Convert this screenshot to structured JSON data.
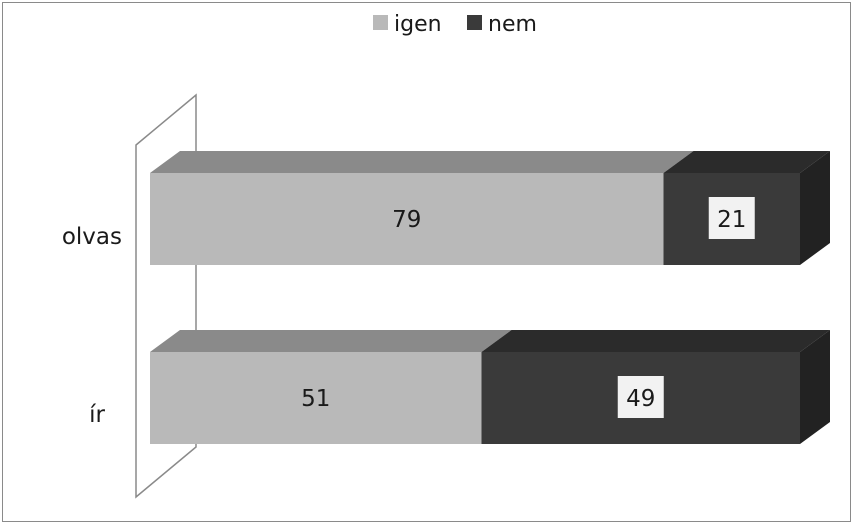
{
  "chart_data": {
    "type": "bar",
    "orientation": "horizontal",
    "stacked": true,
    "percent_stacked": true,
    "three_d": true,
    "title": "",
    "xlabel": "",
    "ylabel": "",
    "categories": [
      "olvas",
      "ír"
    ],
    "series": [
      {
        "name": "igen",
        "values": [
          79,
          51
        ],
        "color": "#b9b9b9"
      },
      {
        "name": "nem",
        "values": [
          21,
          49
        ],
        "color": "#3a3a3a"
      }
    ],
    "xlim": [
      0,
      100
    ],
    "legend": "top-center",
    "grid": false
  },
  "colors": {
    "igen_front": "#b9b9b9",
    "igen_top": "#8a8a8a",
    "nem_front": "#3a3a3a",
    "nem_top": "#2b2b2b",
    "nem_side": "#222222",
    "frame": "#8a8a8a",
    "text": "#1a1a1a",
    "label_box": "#f2f2f2"
  }
}
